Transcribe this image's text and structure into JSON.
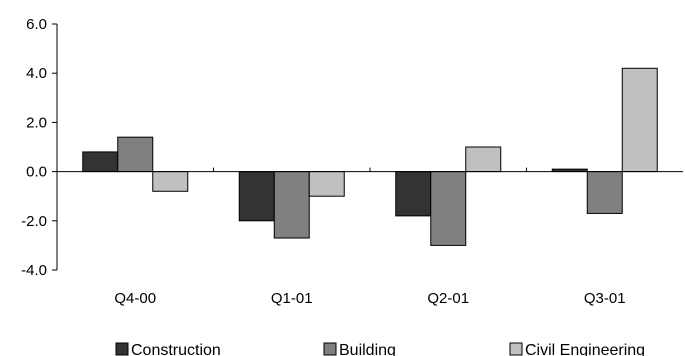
{
  "chart_data": {
    "type": "bar",
    "categories": [
      "Q4-00",
      "Q1-01",
      "Q2-01",
      "Q3-01"
    ],
    "series": [
      {
        "name": "Construction",
        "values": [
          0.8,
          -2.0,
          -1.8,
          0.1
        ],
        "color": "#333333"
      },
      {
        "name": "Building",
        "values": [
          1.4,
          -2.7,
          -3.0,
          -1.7
        ],
        "color": "#808080"
      },
      {
        "name": "Civil Engineering",
        "values": [
          -0.8,
          -1.0,
          1.0,
          4.2
        ],
        "color": "#c0c0c0"
      }
    ],
    "y_ticks": [
      "-4.0",
      "-2.0",
      "0.0",
      "2.0",
      "4.0",
      "6.0"
    ],
    "ylim": [
      -4,
      6
    ],
    "grid": false,
    "legend_position": "bottom"
  }
}
